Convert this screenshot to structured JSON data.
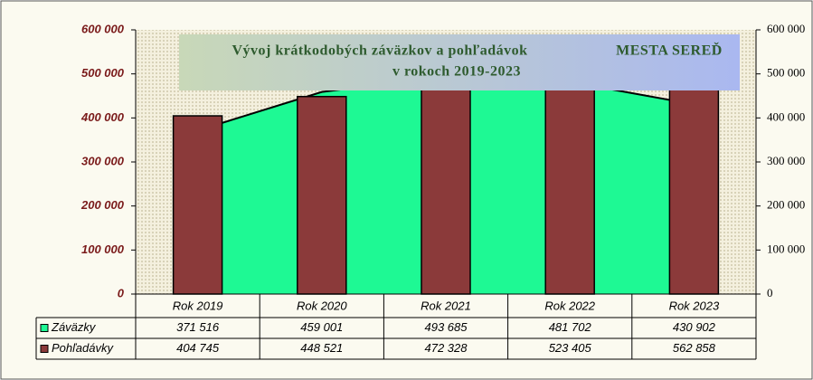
{
  "chart_data": {
    "type": "bar",
    "title_lines": [
      "Vývoj krátkodobých záväzkov a pohľadávok",
      "MESTA SEREĎ",
      "v rokoch 2019-2023"
    ],
    "categories": [
      "Rok 2019",
      "Rok 2020",
      "Rok 2021",
      "Rok 2022",
      "Rok 2023"
    ],
    "series": [
      {
        "name": "Záväzky",
        "type": "area",
        "color": "#1ef994",
        "values": [
          371516,
          459001,
          493685,
          481702,
          430902
        ],
        "value_labels": [
          "371 516",
          "459 001",
          "493 685",
          "481 702",
          "430 902"
        ]
      },
      {
        "name": "Pohľadávky",
        "type": "bar",
        "color": "#8b3a3a",
        "axis": "y2",
        "values": [
          404745,
          448521,
          472328,
          523405,
          562858
        ],
        "value_labels": [
          "404 745",
          "448 521",
          "472 328",
          "523 405",
          "562 858"
        ]
      }
    ],
    "ylim": [
      0,
      600000
    ],
    "yticks": [
      {
        "value": 0,
        "label": "0"
      },
      {
        "value": 100000,
        "label": "100 000"
      },
      {
        "value": 200000,
        "label": "200 000"
      },
      {
        "value": 300000,
        "label": "300 000"
      },
      {
        "value": 400000,
        "label": "400 000"
      },
      {
        "value": 500000,
        "label": "500 000"
      },
      {
        "value": 600000,
        "label": "600 000"
      }
    ],
    "y2lim": [
      0,
      600000
    ],
    "y2ticks": [
      {
        "value": 0,
        "label": "0"
      },
      {
        "value": 100000,
        "label": "100 000"
      },
      {
        "value": 200000,
        "label": "200 000"
      },
      {
        "value": 300000,
        "label": "300 000"
      },
      {
        "value": 400000,
        "label": "400 000"
      },
      {
        "value": 500000,
        "label": "500 000"
      },
      {
        "value": 600000,
        "label": "600 000"
      }
    ]
  }
}
